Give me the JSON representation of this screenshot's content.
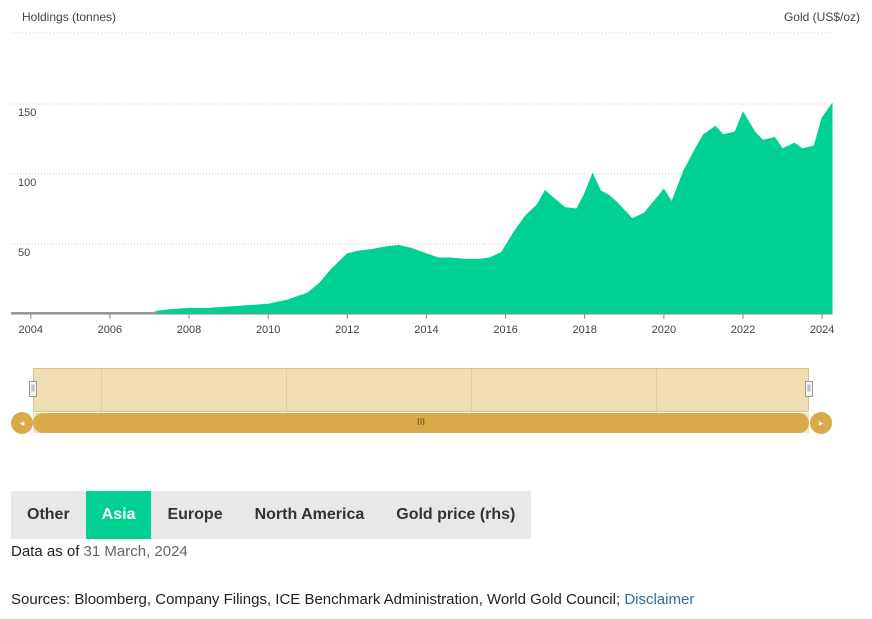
{
  "chart_data": {
    "type": "area",
    "ylabel_left": "Holdings (tonnes)",
    "ylabel_right": "Gold (US$/oz)",
    "y_ticks": [
      50,
      100,
      150
    ],
    "ylim": [
      0,
      150
    ],
    "x_ticks": [
      "2004",
      "2006",
      "2008",
      "2010",
      "2012",
      "2014",
      "2016",
      "2018",
      "2020",
      "2022",
      "2024"
    ],
    "xlim": [
      2003.5,
      2024.25
    ],
    "color": "#00d092",
    "series": [
      {
        "x": [
          2003.5,
          2007.0,
          2007.2,
          2007.5,
          2008.0,
          2008.5,
          2009.0,
          2009.5,
          2010.0,
          2010.5,
          2011.0,
          2011.3,
          2011.6,
          2012.0,
          2012.3,
          2012.6,
          2013.0,
          2013.3,
          2013.6,
          2014.0,
          2014.3,
          2014.6,
          2015.0,
          2015.3,
          2015.6,
          2015.9,
          2016.2,
          2016.5,
          2016.8,
          2017.0,
          2017.2,
          2017.5,
          2017.8,
          2018.0,
          2018.2,
          2018.4,
          2018.6,
          2018.8,
          2019.0,
          2019.2,
          2019.5,
          2019.8,
          2020.0,
          2020.2,
          2020.5,
          2020.8,
          2021.0,
          2021.3,
          2021.5,
          2021.8,
          2022.0,
          2022.3,
          2022.5,
          2022.8,
          2023.0,
          2023.3,
          2023.5,
          2023.8,
          2024.0,
          2024.25
        ],
        "y": [
          0,
          0,
          2,
          3,
          4,
          4,
          5,
          6,
          7,
          10,
          15,
          22,
          32,
          43,
          45,
          46,
          48,
          49,
          47,
          43,
          40,
          40,
          39,
          39,
          40,
          44,
          58,
          70,
          78,
          88,
          83,
          76,
          75,
          86,
          100,
          88,
          85,
          80,
          74,
          68,
          72,
          82,
          89,
          80,
          102,
          118,
          128,
          134,
          128,
          130,
          144,
          130,
          124,
          126,
          118,
          122,
          118,
          120,
          140,
          150
        ]
      }
    ]
  },
  "navigator": {
    "scroll_thumb_label": "III",
    "left_arrow": "◂",
    "right_arrow": "▸"
  },
  "tabs": [
    {
      "label": "Other",
      "active": false
    },
    {
      "label": "Asia",
      "active": true
    },
    {
      "label": "Europe",
      "active": false
    },
    {
      "label": "North America",
      "active": false
    },
    {
      "label": "Gold price (rhs)",
      "active": false
    }
  ],
  "footer": {
    "data_as_of_prefix": "Data as of",
    "data_as_of_date": "31 March, 2024",
    "sources_text": "Sources: Bloomberg, Company Filings, ICE Benchmark Administration, World Gold Council;",
    "disclaimer_link": "Disclaimer"
  }
}
